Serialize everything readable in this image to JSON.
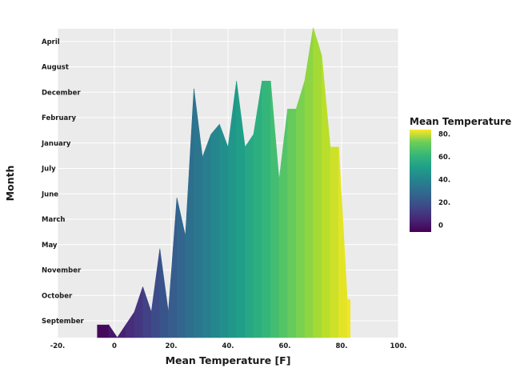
{
  "chart_data": {
    "type": "area",
    "title": "",
    "xlabel": "Mean Temperature [F]",
    "ylabel": "Month",
    "xlim": [
      -20,
      100
    ],
    "x_ticks": [
      -20,
      0,
      20,
      40,
      60,
      80,
      100
    ],
    "x_tick_labels": [
      "-20.",
      "0",
      "20.",
      "40.",
      "60.",
      "80.",
      "100."
    ],
    "categories": [
      "September",
      "October",
      "November",
      "May",
      "March",
      "June",
      "July",
      "January",
      "February",
      "December",
      "August",
      "April"
    ],
    "panel_background": "#ebebeb",
    "grid": true,
    "colorscale": "viridis",
    "legend": {
      "title": "Mean Temperature [F",
      "placement": "right",
      "range": [
        -6,
        84
      ],
      "ticks": [
        0,
        20,
        40,
        60,
        80
      ],
      "tick_labels": [
        "0",
        "20.",
        "40.",
        "60.",
        "80."
      ]
    },
    "density_profile": {
      "temperature_F": [
        -6,
        -2,
        1,
        4,
        7,
        10,
        13,
        16,
        19,
        22,
        25,
        28,
        31,
        34,
        37,
        40,
        43,
        46,
        49,
        52,
        55,
        58,
        61,
        64,
        67,
        70,
        73,
        76,
        79,
        82,
        83
      ],
      "rows_height": [
        0.5,
        0.5,
        0,
        0.5,
        1,
        2,
        1,
        3.5,
        1,
        5.5,
        4,
        9.8,
        7.1,
        8,
        8.4,
        7.5,
        10.1,
        7.5,
        8,
        10.1,
        10.1,
        6.2,
        9,
        9,
        10.1,
        12.2,
        11.1,
        7.5,
        7.5,
        1.5,
        1.5
      ]
    }
  }
}
